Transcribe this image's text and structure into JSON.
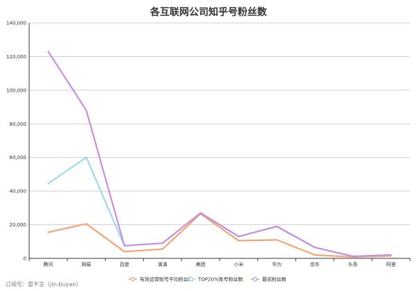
{
  "chart_data": {
    "type": "line",
    "title": "各互联网公司知乎号粉丝数",
    "categories": [
      "腾讯",
      "网易",
      "百度",
      "滴滴",
      "美团",
      "小米",
      "华为",
      "京东",
      "头条",
      "阿里"
    ],
    "ylim": [
      0,
      140000
    ],
    "yticks": [
      0,
      20000,
      40000,
      60000,
      80000,
      100000,
      120000,
      140000
    ],
    "ytick_labels": [
      "0",
      "20,000",
      "40,000",
      "60,000",
      "80,000",
      "100,000",
      "120,000",
      "140,000"
    ],
    "grid": true,
    "legend_position": "bottom",
    "series": [
      {
        "name": "有效运营账号平均粉丝数",
        "color": "#f4a272",
        "values": [
          15500,
          20500,
          4000,
          5500,
          26500,
          10500,
          11000,
          2000,
          800,
          1500
        ]
      },
      {
        "name": "TOP20%账号粉丝数",
        "color": "#9fd8f2",
        "values": [
          44500,
          60000,
          7500,
          9000,
          27000,
          13000,
          19000,
          6500,
          1200,
          2000
        ]
      },
      {
        "name": "最高粉丝数",
        "color": "#c88ede",
        "values": [
          123000,
          88000,
          7500,
          9000,
          27000,
          13000,
          19000,
          6500,
          1200,
          2000
        ]
      }
    ]
  },
  "footer": {
    "text": "订阅号：冒不言（jin-buyan）"
  }
}
